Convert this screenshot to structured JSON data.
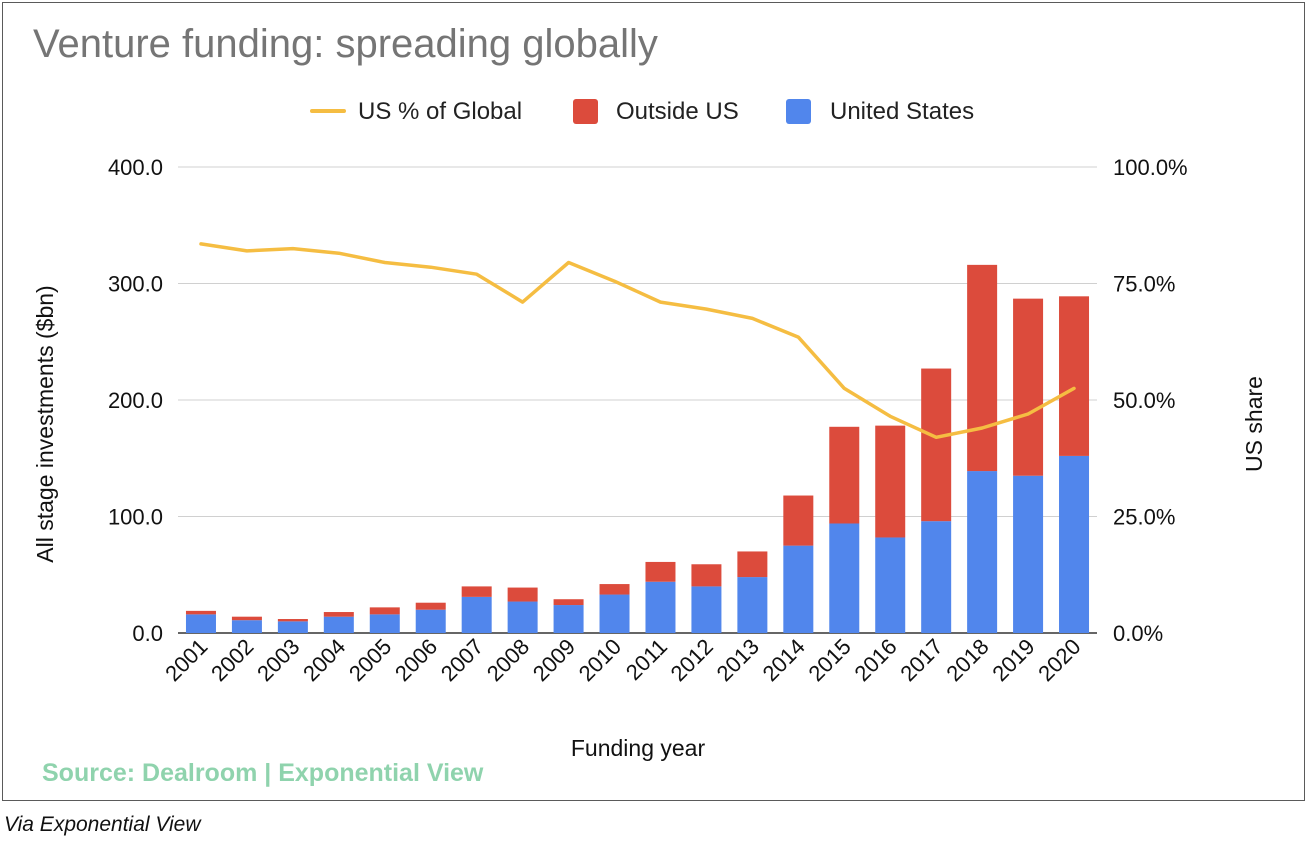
{
  "caption": "Via Exponential View",
  "chart_data": {
    "type": "bar",
    "stacked": true,
    "title": "Venture funding: spreading globally",
    "xlabel": "Funding year",
    "ylabel": "All stage investments ($bn)",
    "y2label": "US share",
    "ylim": [
      0,
      400
    ],
    "y2lim": [
      0,
      1
    ],
    "yticks": [
      "0.0",
      "100.0",
      "200.0",
      "300.0",
      "400.0"
    ],
    "y2ticks": [
      "0.0%",
      "25.0%",
      "50.0%",
      "75.0%",
      "100.0%"
    ],
    "grid": true,
    "legend_position": "top",
    "source_note": "Source: Dealroom | Exponential View",
    "categories": [
      "2001",
      "2002",
      "2003",
      "2004",
      "2005",
      "2006",
      "2007",
      "2008",
      "2009",
      "2010",
      "2011",
      "2012",
      "2013",
      "2014",
      "2015",
      "2016",
      "2017",
      "2018",
      "2019",
      "2020"
    ],
    "series": [
      {
        "name": "United States",
        "kind": "bar",
        "color": "#5186ec",
        "values": [
          16,
          11,
          10,
          14,
          16,
          20,
          31,
          27,
          24,
          33,
          44,
          40,
          48,
          75,
          94,
          82,
          96,
          139,
          135,
          152
        ]
      },
      {
        "name": "Outside US",
        "kind": "bar",
        "color": "#dc4b3c",
        "values": [
          3,
          3,
          2,
          4,
          6,
          6,
          9,
          12,
          5,
          9,
          17,
          19,
          22,
          43,
          83,
          96,
          131,
          177,
          152,
          137
        ]
      },
      {
        "name": "US % of Global",
        "kind": "line",
        "axis": "right",
        "color": "#f5bd42",
        "values": [
          0.835,
          0.82,
          0.825,
          0.815,
          0.795,
          0.785,
          0.77,
          0.71,
          0.795,
          0.755,
          0.71,
          0.695,
          0.675,
          0.635,
          0.525,
          0.465,
          0.42,
          0.44,
          0.47,
          0.525
        ]
      }
    ]
  }
}
